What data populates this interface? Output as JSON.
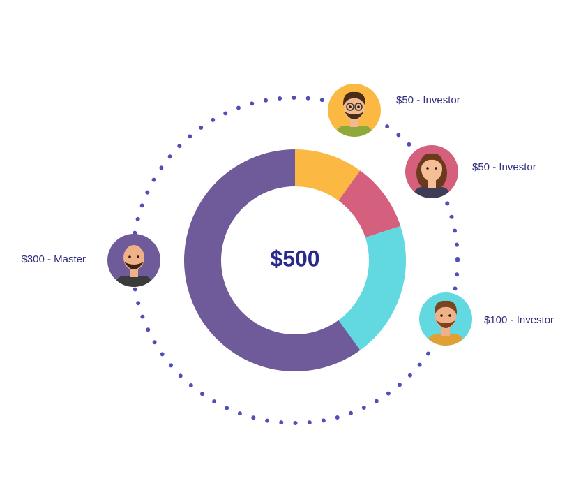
{
  "chart_data": {
    "type": "donut",
    "center_label": "$500",
    "values": [
      50,
      50,
      100,
      300
    ],
    "value_labels": [
      "$50 - Investor",
      "$50 - Investor",
      "$100 - Investor",
      "$300 - Master"
    ],
    "colors": [
      "#fbb843",
      "#d4607e",
      "#62d8e0",
      "#6f5a9a"
    ]
  }
}
